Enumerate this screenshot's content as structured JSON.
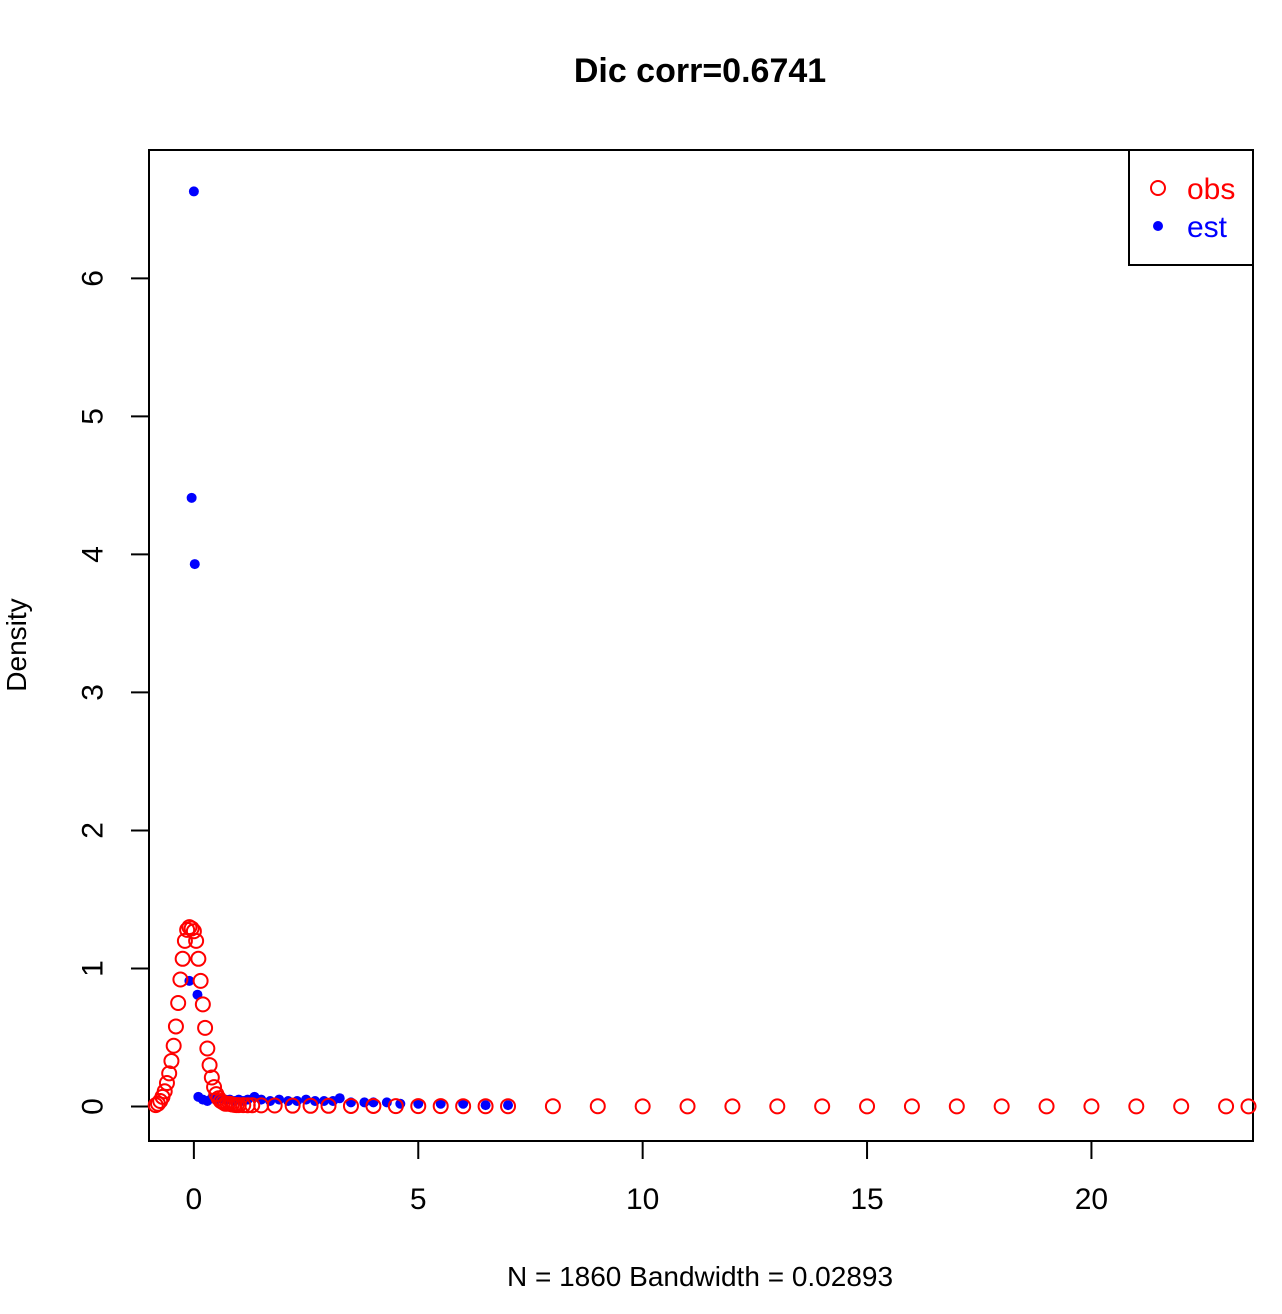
{
  "chart_data": {
    "type": "scatter",
    "title": "Dic corr=0.6741",
    "xlabel": "N = 1860   Bandwidth = 0.02893",
    "ylabel": "Density",
    "xlim": [
      -1,
      23.6
    ],
    "ylim": [
      -0.25,
      6.93
    ],
    "xticks": [
      0,
      5,
      10,
      15,
      20
    ],
    "yticks": [
      0,
      1,
      2,
      3,
      4,
      5,
      6
    ],
    "grid": false,
    "legend_position": "top-right",
    "series": [
      {
        "name": "obs",
        "color": "#ff0000",
        "marker": "open-circle",
        "x": [
          -0.85,
          -0.8,
          -0.75,
          -0.7,
          -0.65,
          -0.6,
          -0.55,
          -0.5,
          -0.45,
          -0.4,
          -0.35,
          -0.3,
          -0.25,
          -0.2,
          -0.15,
          -0.1,
          -0.05,
          0.0,
          0.05,
          0.1,
          0.15,
          0.2,
          0.25,
          0.3,
          0.35,
          0.4,
          0.45,
          0.5,
          0.55,
          0.6,
          0.65,
          0.7,
          0.75,
          0.8,
          0.85,
          0.9,
          0.95,
          1.0,
          1.1,
          1.2,
          1.3,
          1.5,
          1.8,
          2.2,
          2.6,
          3.0,
          3.5,
          4.0,
          4.5,
          5.0,
          5.5,
          6.0,
          6.5,
          7.0,
          8.0,
          9.0,
          10.0,
          11.0,
          12.0,
          13.0,
          14.0,
          15.0,
          16.0,
          17.0,
          18.0,
          19.0,
          20.0,
          21.0,
          22.0,
          23.0,
          23.5
        ],
        "y": [
          0.01,
          0.02,
          0.04,
          0.07,
          0.11,
          0.17,
          0.24,
          0.33,
          0.44,
          0.58,
          0.75,
          0.92,
          1.07,
          1.2,
          1.28,
          1.3,
          1.29,
          1.27,
          1.2,
          1.07,
          0.91,
          0.74,
          0.57,
          0.42,
          0.3,
          0.21,
          0.14,
          0.09,
          0.06,
          0.04,
          0.03,
          0.02,
          0.02,
          0.02,
          0.015,
          0.012,
          0.01,
          0.01,
          0.01,
          0.009,
          0.009,
          0.008,
          0.007,
          0.006,
          0.005,
          0.005,
          0.004,
          0.004,
          0.003,
          0.003,
          0.003,
          0.002,
          0.002,
          0.002,
          0.002,
          0.002,
          0.001,
          0.001,
          0.001,
          0.001,
          0.001,
          0.001,
          0.001,
          0.001,
          0.001,
          0.001,
          0.001,
          0.001,
          0.001,
          0.001,
          0.001
        ]
      },
      {
        "name": "est",
        "color": "#0000ff",
        "marker": "filled-dot",
        "x": [
          0.0,
          -0.05,
          0.02,
          -0.1,
          0.08,
          0.1,
          0.2,
          0.3,
          0.4,
          0.5,
          0.6,
          0.7,
          0.8,
          0.9,
          1.0,
          1.1,
          1.2,
          1.35,
          1.5,
          1.7,
          1.9,
          2.1,
          2.3,
          2.5,
          2.7,
          2.9,
          3.1,
          3.25,
          3.5,
          3.8,
          4.0,
          4.3,
          4.6,
          5.0,
          5.5,
          6.0,
          6.5,
          7.0
        ],
        "y": [
          6.63,
          4.41,
          3.93,
          0.91,
          0.81,
          0.07,
          0.05,
          0.04,
          0.06,
          0.05,
          0.06,
          0.05,
          0.05,
          0.04,
          0.05,
          0.04,
          0.05,
          0.07,
          0.05,
          0.04,
          0.05,
          0.04,
          0.04,
          0.05,
          0.04,
          0.04,
          0.04,
          0.06,
          0.03,
          0.03,
          0.03,
          0.03,
          0.02,
          0.02,
          0.02,
          0.02,
          0.01,
          0.01
        ]
      }
    ]
  }
}
